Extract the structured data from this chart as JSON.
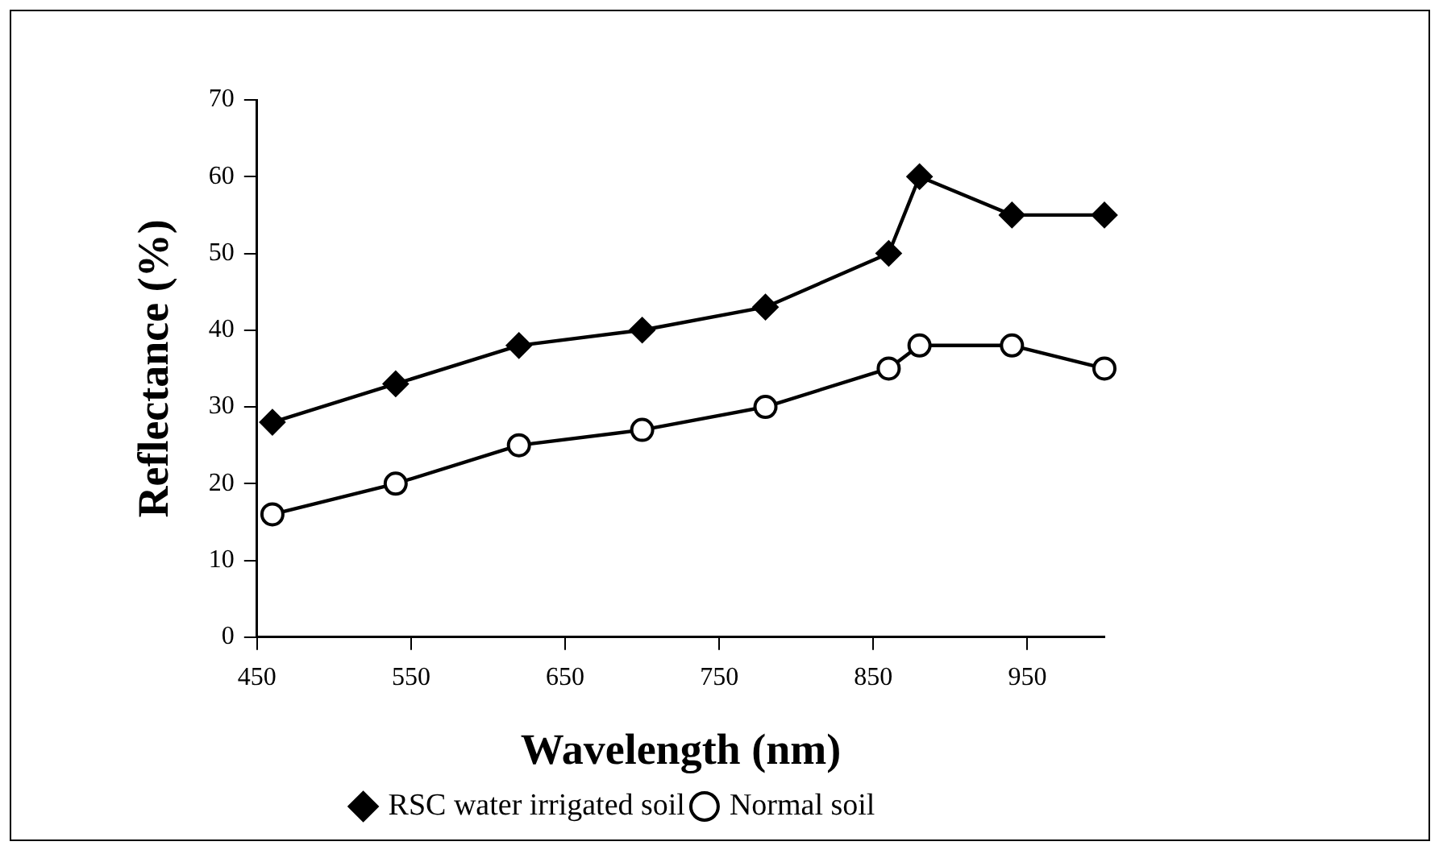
{
  "chart_data": {
    "type": "line",
    "xlabel": "Wavelength (nm)",
    "ylabel": "Reflectance (%)",
    "x": [
      460,
      540,
      620,
      700,
      780,
      860,
      880,
      940,
      1000
    ],
    "series": [
      {
        "name": "RSC water irrigated soil",
        "color": "#000000",
        "marker": "diamond",
        "values": [
          28,
          33,
          38,
          40,
          43,
          50,
          60,
          55,
          55
        ]
      },
      {
        "name": "Normal soil",
        "color": "#000000",
        "marker": "circle",
        "values": [
          16,
          20,
          25,
          27,
          30,
          35,
          38,
          38,
          35
        ]
      }
    ],
    "xlim": [
      450,
      1000
    ],
    "xticks": [
      450,
      550,
      650,
      750,
      850,
      950
    ],
    "ylim": [
      0,
      70
    ],
    "yticks": [
      0,
      10,
      20,
      30,
      40,
      50,
      60,
      70
    ],
    "grid": false,
    "legend": "bottom",
    "line_style": "solid"
  }
}
